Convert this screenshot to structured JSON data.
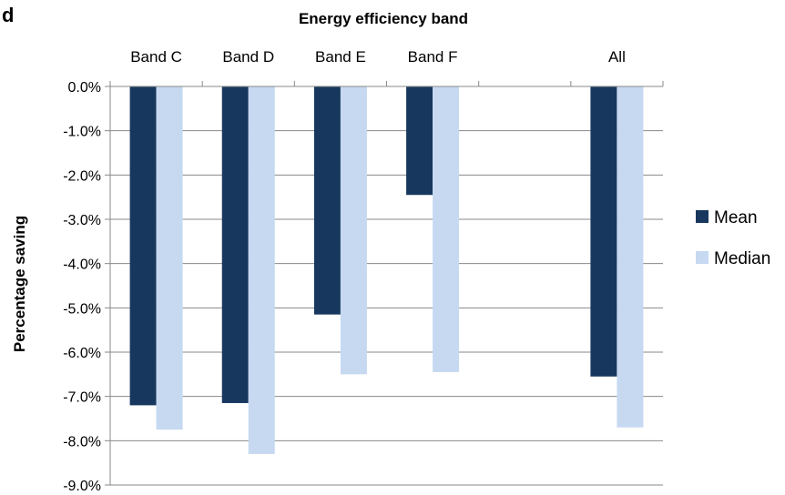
{
  "panel_label": "d",
  "chart_data": {
    "type": "bar",
    "title": "Energy efficiency band",
    "xlabel": "",
    "ylabel": "Percentage saving",
    "categories": [
      "Band C",
      "Band D",
      "Band E",
      "Band F",
      "",
      "All"
    ],
    "series": [
      {
        "name": "Mean",
        "values": [
          -7.2,
          -7.15,
          -5.15,
          -2.45,
          null,
          -6.55
        ],
        "color": "#17375e"
      },
      {
        "name": "Median",
        "values": [
          -7.75,
          -8.3,
          -6.5,
          -6.45,
          null,
          -7.7
        ],
        "color": "#c6d9f1"
      }
    ],
    "ylim": [
      -9,
      0
    ],
    "yticks": [
      "0.0%",
      "-1.0%",
      "-2.0%",
      "-3.0%",
      "-4.0%",
      "-5.0%",
      "-6.0%",
      "-7.0%",
      "-8.0%",
      "-9.0%"
    ],
    "grid": true,
    "legend_position": "right",
    "x_axis_position": "top"
  }
}
